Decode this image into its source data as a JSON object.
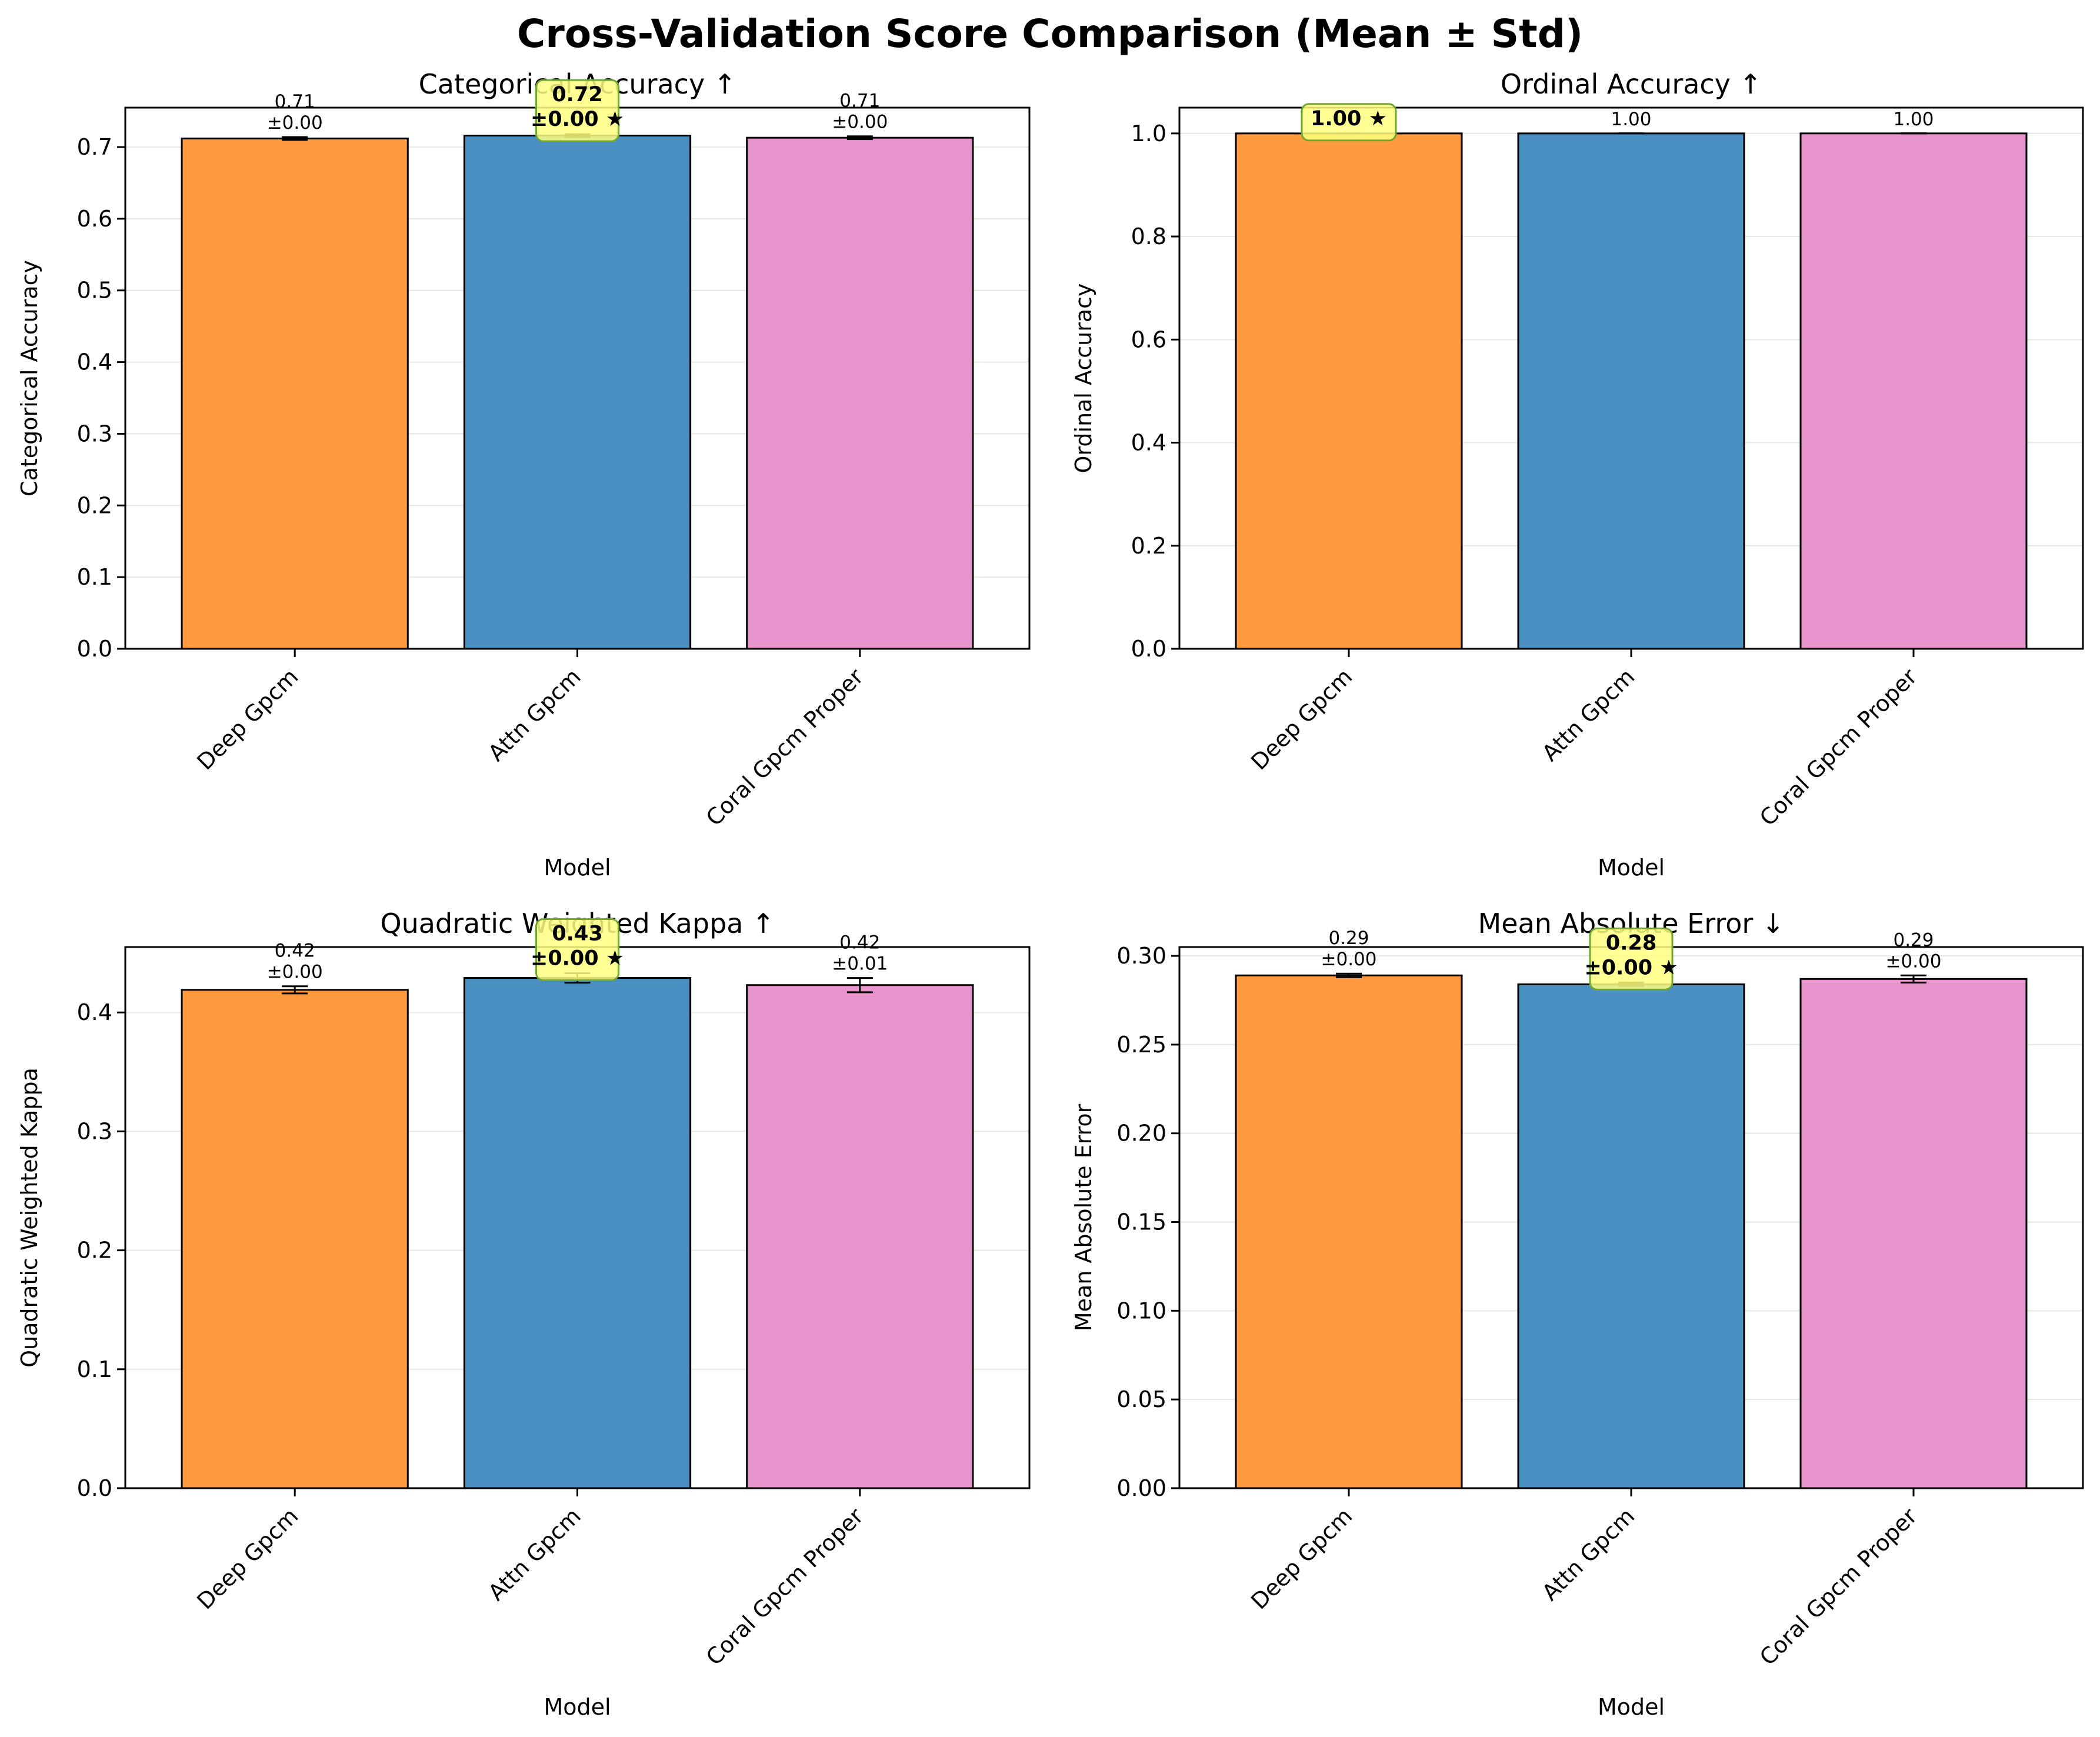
{
  "title": "Cross-Validation Score Comparison (Mean ± Std)",
  "colors": {
    "Deep Gpcm": "#ff9a3f",
    "Attn Gpcm": "#4b90c2",
    "Coral Gpcm Proper": "#e794cc",
    "highlight_fill": "#ffff80",
    "highlight_edge": "#6fa82f",
    "grid": "#e6e6e6",
    "edge": "#000000"
  },
  "chart_data": [
    {
      "type": "bar",
      "title": "Categorical Accuracy ↑",
      "xlabel": "Model",
      "ylabel": "Categorical Accuracy",
      "categories": [
        "Deep Gpcm",
        "Attn Gpcm",
        "Coral Gpcm Proper"
      ],
      "values": [
        0.712,
        0.716,
        0.713
      ],
      "std": [
        0.002,
        0.002,
        0.002
      ],
      "value_labels": [
        "0.71\n±0.00",
        "0.72\n±0.00 ★",
        "0.71\n±0.00"
      ],
      "best_index": 1,
      "ylim": [
        0,
        0.755
      ],
      "yticks": [
        0.0,
        0.1,
        0.2,
        0.3,
        0.4,
        0.5,
        0.6,
        0.7
      ],
      "ytick_labels": [
        "0.0",
        "0.1",
        "0.2",
        "0.3",
        "0.4",
        "0.5",
        "0.6",
        "0.7"
      ],
      "grid": true
    },
    {
      "type": "bar",
      "title": "Ordinal Accuracy ↑",
      "xlabel": "Model",
      "ylabel": "Ordinal Accuracy",
      "categories": [
        "Deep Gpcm",
        "Attn Gpcm",
        "Coral Gpcm Proper"
      ],
      "values": [
        1.0,
        1.0,
        1.0
      ],
      "std": [
        0.0,
        0.0,
        0.0
      ],
      "value_labels": [
        "1.00 ★",
        "1.00",
        "1.00"
      ],
      "best_index": 0,
      "ylim": [
        0,
        1.05
      ],
      "yticks": [
        0.0,
        0.2,
        0.4,
        0.6,
        0.8,
        1.0
      ],
      "ytick_labels": [
        "0.0",
        "0.2",
        "0.4",
        "0.6",
        "0.8",
        "1.0"
      ],
      "grid": true
    },
    {
      "type": "bar",
      "title": "Quadratic Weighted Kappa ↑",
      "xlabel": "Model",
      "ylabel": "Quadratic Weighted Kappa",
      "categories": [
        "Deep Gpcm",
        "Attn Gpcm",
        "Coral Gpcm Proper"
      ],
      "values": [
        0.419,
        0.429,
        0.423
      ],
      "std": [
        0.003,
        0.004,
        0.006
      ],
      "value_labels": [
        "0.42\n±0.00",
        "0.43\n±0.00 ★",
        "0.42\n±0.01"
      ],
      "best_index": 1,
      "ylim": [
        0,
        0.455
      ],
      "yticks": [
        0.0,
        0.1,
        0.2,
        0.3,
        0.4
      ],
      "ytick_labels": [
        "0.0",
        "0.1",
        "0.2",
        "0.3",
        "0.4"
      ],
      "grid": true
    },
    {
      "type": "bar",
      "title": "Mean Absolute Error ↓",
      "xlabel": "Model",
      "ylabel": "Mean Absolute Error",
      "categories": [
        "Deep Gpcm",
        "Attn Gpcm",
        "Coral Gpcm Proper"
      ],
      "values": [
        0.289,
        0.284,
        0.287
      ],
      "std": [
        0.001,
        0.001,
        0.002
      ],
      "value_labels": [
        "0.29\n±0.00",
        "0.28\n±0.00 ★",
        "0.29\n±0.00"
      ],
      "best_index": 1,
      "ylim": [
        0,
        0.305
      ],
      "yticks": [
        0.0,
        0.05,
        0.1,
        0.15,
        0.2,
        0.25,
        0.3
      ],
      "ytick_labels": [
        "0.00",
        "0.05",
        "0.10",
        "0.15",
        "0.20",
        "0.25",
        "0.30"
      ],
      "grid": true
    }
  ]
}
